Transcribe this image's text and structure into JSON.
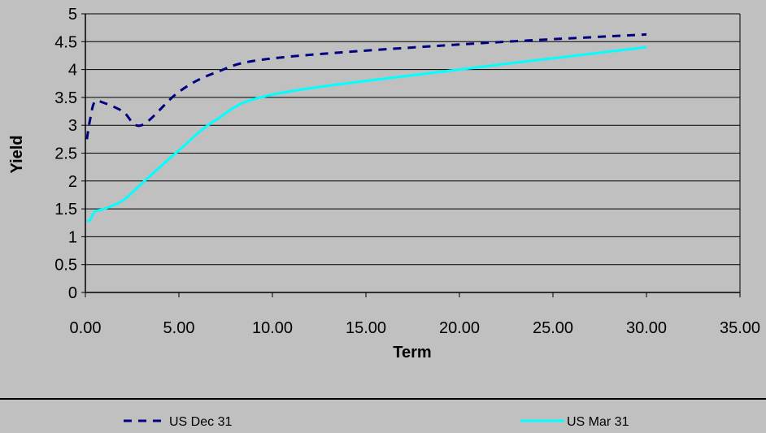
{
  "chart_data": {
    "type": "line",
    "xlabel": "Term",
    "ylabel": "Yield",
    "xlim": [
      0,
      35
    ],
    "ylim": [
      0,
      5
    ],
    "x_ticks": [
      "0.00",
      "5.00",
      "10.00",
      "15.00",
      "20.00",
      "25.00",
      "30.00",
      "35.00"
    ],
    "y_ticks": [
      "0",
      "0.5",
      "1",
      "1.5",
      "2",
      "2.5",
      "3",
      "3.5",
      "4",
      "4.5",
      "5"
    ],
    "grid": "horizontal",
    "legend_position": "bottom",
    "series": [
      {
        "name": "US Dec 31",
        "color": "#000080",
        "style": "dashed",
        "x": [
          0.08,
          0.25,
          0.5,
          1,
          2,
          3,
          5,
          7,
          10,
          20,
          30
        ],
        "y": [
          2.75,
          3.1,
          3.42,
          3.4,
          3.25,
          3.0,
          3.6,
          3.95,
          4.2,
          4.45,
          4.63
        ]
      },
      {
        "name": "US Mar 31",
        "color": "#00ffff",
        "style": "solid",
        "x": [
          0.08,
          0.25,
          0.5,
          1,
          2,
          3,
          5,
          7,
          10,
          20,
          30
        ],
        "y": [
          1.28,
          1.3,
          1.45,
          1.5,
          1.65,
          1.95,
          2.55,
          3.1,
          3.55,
          4.0,
          4.4
        ]
      }
    ]
  }
}
